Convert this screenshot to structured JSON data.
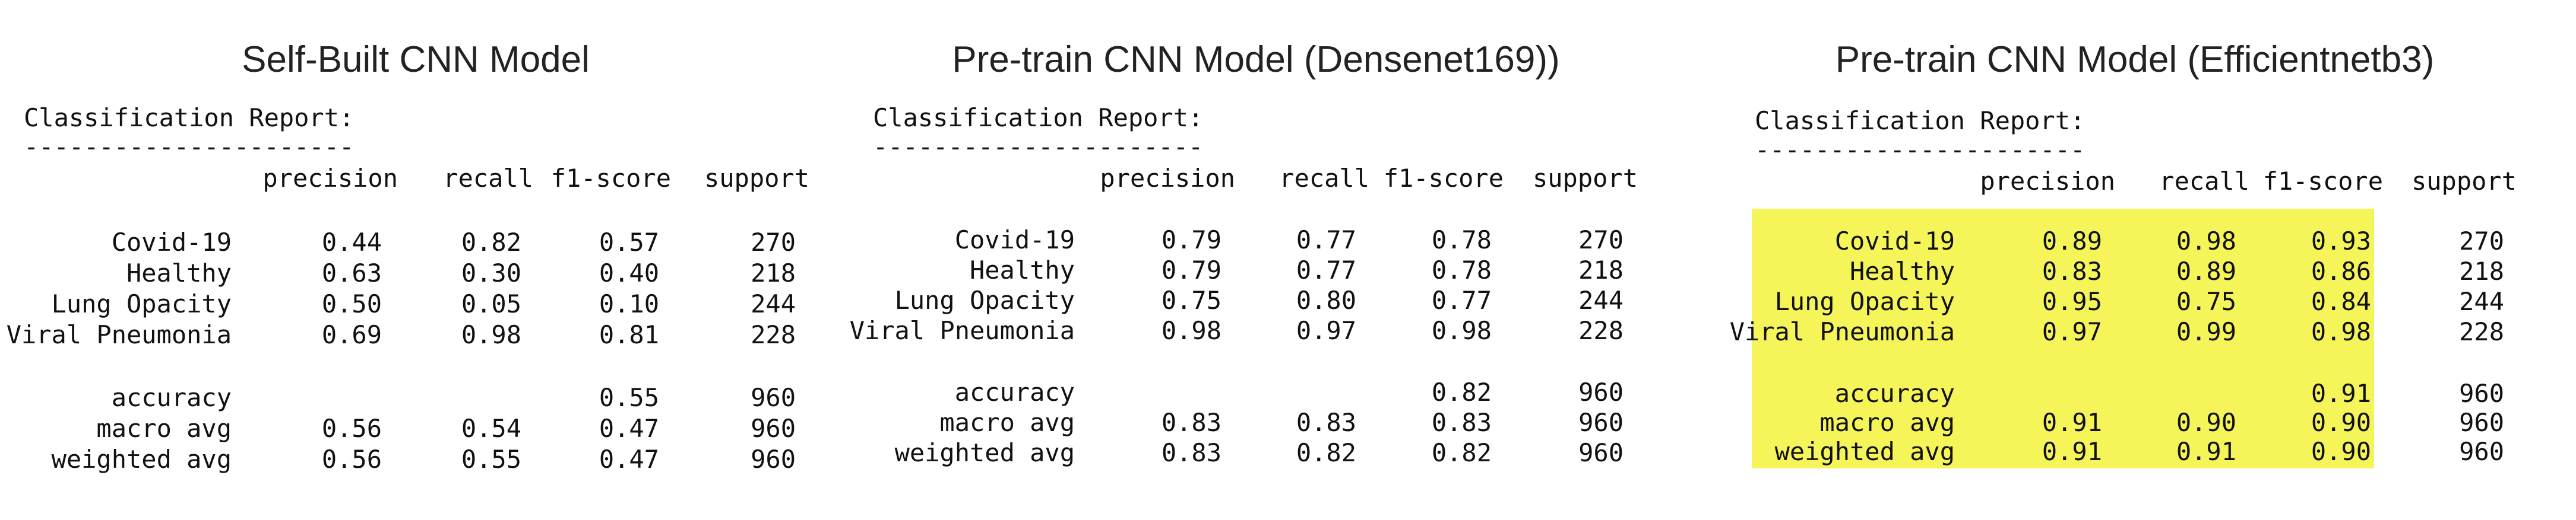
{
  "reports": [
    {
      "title": "Self-Built CNN Model",
      "report_heading": "Classification Report:",
      "separator": "----------------------",
      "headers": [
        "precision",
        "recall",
        "f1-score",
        "support"
      ],
      "rows": [
        {
          "label": "Covid-19",
          "precision": "0.44",
          "recall": "0.82",
          "f1": "0.57",
          "support": "270"
        },
        {
          "label": "Healthy",
          "precision": "0.63",
          "recall": "0.30",
          "f1": "0.40",
          "support": "218"
        },
        {
          "label": "Lung Opacity",
          "precision": "0.50",
          "recall": "0.05",
          "f1": "0.10",
          "support": "244"
        },
        {
          "label": "Viral Pneumonia",
          "precision": "0.69",
          "recall": "0.98",
          "f1": "0.81",
          "support": "228"
        }
      ],
      "summary": [
        {
          "label": "accuracy",
          "precision": "",
          "recall": "",
          "f1": "0.55",
          "support": "960"
        },
        {
          "label": "macro avg",
          "precision": "0.56",
          "recall": "0.54",
          "f1": "0.47",
          "support": "960"
        },
        {
          "label": "weighted avg",
          "precision": "0.56",
          "recall": "0.55",
          "f1": "0.47",
          "support": "960"
        }
      ],
      "highlighted": false
    },
    {
      "title": "Pre-train CNN Model (Densenet169))",
      "report_heading": "Classification Report:",
      "separator": "----------------------",
      "headers": [
        "precision",
        "recall",
        "f1-score",
        "support"
      ],
      "rows": [
        {
          "label": "Covid-19",
          "precision": "0.79",
          "recall": "0.77",
          "f1": "0.78",
          "support": "270"
        },
        {
          "label": "Healthy",
          "precision": "0.79",
          "recall": "0.77",
          "f1": "0.78",
          "support": "218"
        },
        {
          "label": "Lung Opacity",
          "precision": "0.75",
          "recall": "0.80",
          "f1": "0.77",
          "support": "244"
        },
        {
          "label": "Viral Pneumonia",
          "precision": "0.98",
          "recall": "0.97",
          "f1": "0.98",
          "support": "228"
        }
      ],
      "summary": [
        {
          "label": "accuracy",
          "precision": "",
          "recall": "",
          "f1": "0.82",
          "support": "960"
        },
        {
          "label": "macro avg",
          "precision": "0.83",
          "recall": "0.83",
          "f1": "0.83",
          "support": "960"
        },
        {
          "label": "weighted avg",
          "precision": "0.83",
          "recall": "0.82",
          "f1": "0.82",
          "support": "960"
        }
      ],
      "highlighted": false
    },
    {
      "title": "Pre-train CNN Model (Efficientnetb3)",
      "report_heading": "Classification Report:",
      "separator": "----------------------",
      "headers": [
        "precision",
        "recall",
        "f1-score",
        "support"
      ],
      "rows": [
        {
          "label": "Covid-19",
          "precision": "0.89",
          "recall": "0.98",
          "f1": "0.93",
          "support": "270"
        },
        {
          "label": "Healthy",
          "precision": "0.83",
          "recall": "0.89",
          "f1": "0.86",
          "support": "218"
        },
        {
          "label": "Lung Opacity",
          "precision": "0.95",
          "recall": "0.75",
          "f1": "0.84",
          "support": "244"
        },
        {
          "label": "Viral Pneumonia",
          "precision": "0.97",
          "recall": "0.99",
          "f1": "0.98",
          "support": "228"
        }
      ],
      "summary": [
        {
          "label": "accuracy",
          "precision": "",
          "recall": "",
          "f1": "0.91",
          "support": "960"
        },
        {
          "label": "macro avg",
          "precision": "0.91",
          "recall": "0.90",
          "f1": "0.90",
          "support": "960"
        },
        {
          "label": "weighted avg",
          "precision": "0.91",
          "recall": "0.91",
          "f1": "0.90",
          "support": "960"
        }
      ],
      "highlighted": true,
      "highlight_color": "#f5f55a"
    }
  ]
}
